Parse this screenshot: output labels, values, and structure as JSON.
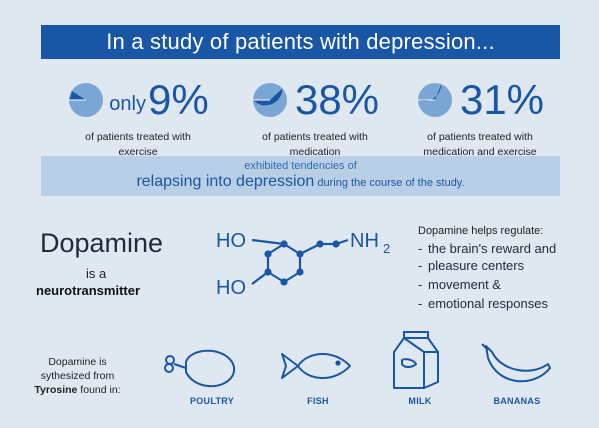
{
  "banner": {
    "title": "In a study of patients with depression..."
  },
  "stats": [
    {
      "prefix": "only",
      "value": "9%",
      "fraction": 0.09,
      "caption1": "of patients treated with",
      "caption2": "exercise"
    },
    {
      "prefix": "",
      "value": "38%",
      "fraction": 0.38,
      "caption1": "of patients treated with",
      "caption2": "medication"
    },
    {
      "prefix": "",
      "value": "31%",
      "fraction": 0.31,
      "caption1": "of patients treated with",
      "caption2": "medication and exercise"
    }
  ],
  "band": {
    "line1": "exhibited tendencies of",
    "highlight": "relapsing into depression",
    "rest": " during the course of the study."
  },
  "dopamine": {
    "title": "Dopamine",
    "is_a": "is a",
    "neurotransmitter": "neurotransmitter",
    "molecule": {
      "ho_top": "HO",
      "ho_bottom": "HO",
      "nh": "NH",
      "nh_sub": "2"
    }
  },
  "regulates": {
    "title": "Dopamine helps regulate:",
    "items": [
      "the brain's reward and",
      "pleasure centers",
      "movement &",
      "emotional responses"
    ]
  },
  "synthesis": {
    "line1": "Dopamine is",
    "line2": "sythesized from",
    "tyrosine": "Tyrosine",
    "found": " found in:"
  },
  "foods": [
    {
      "label": "POULTRY",
      "icon": "poultry-icon"
    },
    {
      "label": "FISH",
      "icon": "fish-icon"
    },
    {
      "label": "MILK",
      "icon": "milk-carton-icon"
    },
    {
      "label": "BANANAS",
      "icon": "banana-icon"
    }
  ],
  "colors": {
    "accent": "#1a56a6",
    "band": "#b9cfe6",
    "background": "#dfe8f1",
    "pie_light": "#7aa6d4"
  }
}
